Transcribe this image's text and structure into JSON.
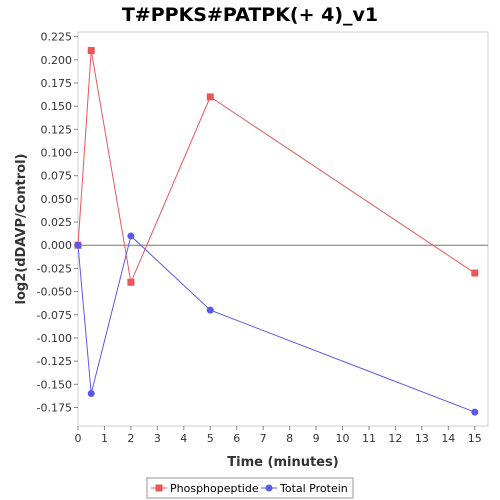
{
  "chart_data": {
    "type": "line",
    "title": "T#PPKS#PATPK(+ 4)_v1",
    "xlabel": "Time (minutes)",
    "ylabel": "log2(dDAVP/Control)",
    "xlim": [
      0,
      15.5
    ],
    "ylim": [
      -0.195,
      0.23
    ],
    "xticks": [
      "0",
      "1",
      "2",
      "3",
      "4",
      "5",
      "6",
      "7",
      "8",
      "9",
      "10",
      "11",
      "12",
      "13",
      "14",
      "15"
    ],
    "yticks": [
      "0.225",
      "0.200",
      "0.175",
      "0.150",
      "0.125",
      "0.100",
      "0.075",
      "0.050",
      "0.025",
      "0.000",
      "-0.025",
      "-0.050",
      "-0.075",
      "-0.100",
      "-0.125",
      "-0.150",
      "-0.175"
    ],
    "zero_line": true,
    "legend_position": "bottom",
    "series": [
      {
        "name": "Phosphopeptide",
        "color": "#e8585a",
        "marker": "square",
        "x": [
          0,
          0.5,
          2,
          5,
          15
        ],
        "y": [
          0.0,
          0.21,
          -0.04,
          0.16,
          -0.03
        ]
      },
      {
        "name": "Total Protein",
        "color": "#5a5ae8",
        "marker": "circle",
        "x": [
          0,
          0.5,
          2,
          5,
          15
        ],
        "y": [
          0.0,
          -0.16,
          0.01,
          -0.07,
          -0.18
        ]
      }
    ]
  }
}
